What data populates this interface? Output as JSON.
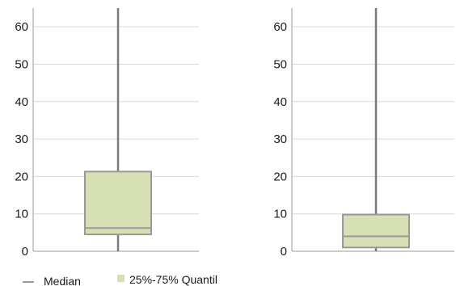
{
  "chart_data": [
    {
      "type": "box",
      "ylim": [
        0,
        65
      ],
      "yticks": [
        0,
        10,
        20,
        30,
        40,
        50,
        60
      ],
      "grid": true,
      "box": {
        "min": 0,
        "q1": 4.5,
        "median": 6.2,
        "q3": 21.3,
        "max": 65
      }
    },
    {
      "type": "box",
      "ylim": [
        0,
        65
      ],
      "yticks": [
        0,
        10,
        20,
        30,
        40,
        50,
        60
      ],
      "grid": true,
      "box": {
        "min": 0,
        "q1": 1,
        "median": 4,
        "q3": 9.8,
        "max": 65
      }
    }
  ],
  "legend": {
    "placement": "bottom-left",
    "items": [
      {
        "label": "Median",
        "symbol": "line",
        "color": "#9a9a9a"
      },
      {
        "label": "25%-75% Quantil",
        "symbol": "square",
        "color": "#d7dfb4"
      }
    ]
  },
  "colors": {
    "box_fill": "#d7dfb4",
    "box_edge": "#9a9a9a",
    "whisker": "#7a7a7a",
    "grid": "#d9d9d9",
    "axis": "#9a9a9a"
  }
}
